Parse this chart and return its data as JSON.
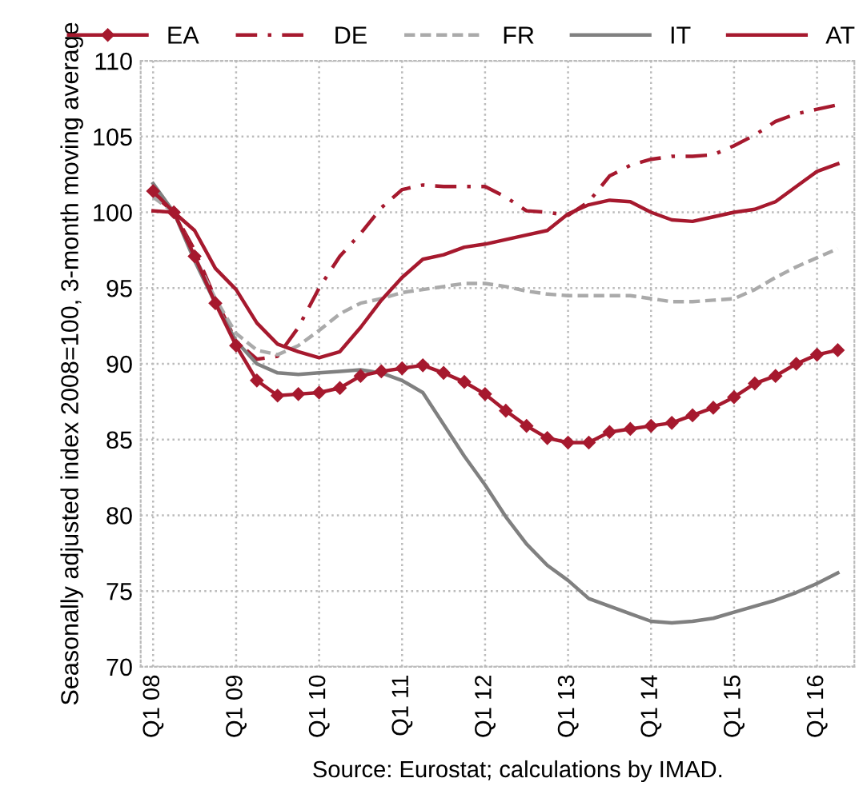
{
  "chart_data": {
    "type": "line",
    "ylabel": "Seasonally adjusted index 2008=100, 3-month moving average",
    "annotations": [
      "Source: Eurostat; calculations by IMAD."
    ],
    "categories": [
      "Q1 08",
      null,
      null,
      null,
      "Q1 09",
      null,
      null,
      null,
      "Q1 10",
      null,
      null,
      null,
      "Q1 11",
      null,
      null,
      null,
      "Q1 12",
      null,
      null,
      null,
      "Q1 13",
      null,
      null,
      null,
      "Q1 14",
      null,
      null,
      null,
      "Q1 15",
      null,
      null,
      null,
      "Q1 16",
      null
    ],
    "ylim": [
      70,
      110
    ],
    "yticks": [
      70,
      75,
      80,
      85,
      90,
      95,
      100,
      105,
      110
    ],
    "grid": true,
    "legend": "top",
    "series": [
      {
        "name": "EA",
        "color": "#a6192e",
        "marker": "diamond",
        "line_style": "solid",
        "values": [
          101.4,
          100.0,
          97.1,
          94.0,
          91.2,
          88.9,
          87.9,
          88.0,
          88.1,
          88.4,
          89.2,
          89.5,
          89.7,
          89.9,
          89.4,
          88.8,
          88.0,
          86.9,
          85.9,
          85.1,
          84.8,
          84.8,
          85.5,
          85.7,
          85.9,
          86.1,
          86.6,
          87.1,
          87.8,
          88.7,
          89.2,
          90.0,
          90.6,
          90.9
        ]
      },
      {
        "name": "DE",
        "color": "#a6192e",
        "marker": "none",
        "line_style": "dashdot",
        "values": [
          101.2,
          100.0,
          97.5,
          94.3,
          91.5,
          90.3,
          90.5,
          92.4,
          95.0,
          97.1,
          98.6,
          100.3,
          101.5,
          101.8,
          101.7,
          101.7,
          101.7,
          101.0,
          100.1,
          100.0,
          99.8,
          100.7,
          102.4,
          103.1,
          103.5,
          103.7,
          103.7,
          103.8,
          104.4,
          105.1,
          106.0,
          106.5,
          106.8,
          107.1
        ]
      },
      {
        "name": "FR",
        "color": "#aaaaaa",
        "marker": "none",
        "line_style": "dashed",
        "values": [
          101.0,
          100.0,
          97.1,
          94.3,
          92.0,
          90.9,
          90.6,
          91.2,
          92.2,
          93.3,
          94.0,
          94.3,
          94.7,
          94.9,
          95.1,
          95.3,
          95.3,
          95.1,
          94.8,
          94.6,
          94.5,
          94.5,
          94.5,
          94.5,
          94.3,
          94.1,
          94.1,
          94.2,
          94.3,
          94.9,
          95.7,
          96.4,
          97.0,
          97.6
        ]
      },
      {
        "name": "IT",
        "color": "#808080",
        "marker": "none",
        "line_style": "solid",
        "values": [
          101.9,
          100.0,
          96.8,
          94.0,
          91.5,
          90.0,
          89.4,
          89.3,
          89.4,
          89.5,
          89.6,
          89.4,
          88.9,
          88.1,
          86.0,
          83.9,
          82.0,
          79.9,
          78.1,
          76.7,
          75.7,
          74.5,
          74.0,
          73.5,
          73.0,
          72.9,
          73.0,
          73.2,
          73.6,
          74.0,
          74.4,
          74.9,
          75.5,
          76.2
        ]
      },
      {
        "name": "AT",
        "color": "#a6192e",
        "marker": "none",
        "line_style": "solid",
        "values": [
          100.1,
          100.0,
          98.8,
          96.3,
          94.9,
          92.7,
          91.3,
          90.8,
          90.4,
          90.8,
          92.4,
          94.2,
          95.7,
          96.9,
          97.2,
          97.7,
          97.9,
          98.2,
          98.5,
          98.8,
          99.9,
          100.5,
          100.8,
          100.7,
          100.0,
          99.5,
          99.4,
          99.7,
          100.0,
          100.2,
          100.7,
          101.7,
          102.7,
          103.2
        ]
      }
    ]
  }
}
